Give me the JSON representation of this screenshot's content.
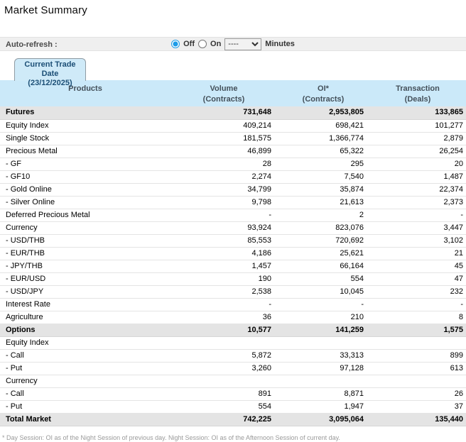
{
  "page": {
    "title": "Market Summary"
  },
  "auto_refresh": {
    "label": "Auto-refresh :",
    "off_label": "Off",
    "on_label": "On",
    "selected": "off",
    "interval_value": "----",
    "minutes_label": "Minutes"
  },
  "tab": {
    "line1": "Current Trade Date",
    "line2": "(23/12/2025)"
  },
  "table": {
    "headers": {
      "products": "Products",
      "volume_line1": "Volume",
      "volume_line2": "(Contracts)",
      "oi_line1": "OI*",
      "oi_line2": "(Contracts)",
      "transaction_line1": "Transaction",
      "transaction_line2": "(Deals)"
    },
    "rows": [
      {
        "label": "Futures",
        "volume": "731,648",
        "oi": "2,953,805",
        "transaction": "133,865",
        "type": "section"
      },
      {
        "label": "Equity Index",
        "volume": "409,214",
        "oi": "698,421",
        "transaction": "101,277",
        "type": "group"
      },
      {
        "label": "Single Stock",
        "volume": "181,575",
        "oi": "1,366,774",
        "transaction": "2,879",
        "type": "group"
      },
      {
        "label": "Precious Metal",
        "volume": "46,899",
        "oi": "65,322",
        "transaction": "26,254",
        "type": "group"
      },
      {
        "label": "- GF",
        "volume": "28",
        "oi": "295",
        "transaction": "20",
        "type": "sub"
      },
      {
        "label": "- GF10",
        "volume": "2,274",
        "oi": "7,540",
        "transaction": "1,487",
        "type": "sub"
      },
      {
        "label": "- Gold Online",
        "volume": "34,799",
        "oi": "35,874",
        "transaction": "22,374",
        "type": "sub"
      },
      {
        "label": "- Silver Online",
        "volume": "9,798",
        "oi": "21,613",
        "transaction": "2,373",
        "type": "sub"
      },
      {
        "label": "Deferred Precious Metal",
        "volume": "-",
        "oi": "2",
        "transaction": "-",
        "type": "group"
      },
      {
        "label": "Currency",
        "volume": "93,924",
        "oi": "823,076",
        "transaction": "3,447",
        "type": "group"
      },
      {
        "label": "- USD/THB",
        "volume": "85,553",
        "oi": "720,692",
        "transaction": "3,102",
        "type": "sub"
      },
      {
        "label": "- EUR/THB",
        "volume": "4,186",
        "oi": "25,621",
        "transaction": "21",
        "type": "sub"
      },
      {
        "label": "- JPY/THB",
        "volume": "1,457",
        "oi": "66,164",
        "transaction": "45",
        "type": "sub"
      },
      {
        "label": "- EUR/USD",
        "volume": "190",
        "oi": "554",
        "transaction": "47",
        "type": "sub"
      },
      {
        "label": "- USD/JPY",
        "volume": "2,538",
        "oi": "10,045",
        "transaction": "232",
        "type": "sub"
      },
      {
        "label": "Interest Rate",
        "volume": "-",
        "oi": "-",
        "transaction": "-",
        "type": "group"
      },
      {
        "label": "Agriculture",
        "volume": "36",
        "oi": "210",
        "transaction": "8",
        "type": "group"
      },
      {
        "label": "Options",
        "volume": "10,577",
        "oi": "141,259",
        "transaction": "1,575",
        "type": "section"
      },
      {
        "label": "Equity Index",
        "volume": "",
        "oi": "",
        "transaction": "",
        "type": "group"
      },
      {
        "label": "- Call",
        "volume": "5,872",
        "oi": "33,313",
        "transaction": "899",
        "type": "sub"
      },
      {
        "label": "- Put",
        "volume": "3,260",
        "oi": "97,128",
        "transaction": "613",
        "type": "sub"
      },
      {
        "label": "Currency",
        "volume": "",
        "oi": "",
        "transaction": "",
        "type": "group"
      },
      {
        "label": "- Call",
        "volume": "891",
        "oi": "8,871",
        "transaction": "26",
        "type": "sub"
      },
      {
        "label": "- Put",
        "volume": "554",
        "oi": "1,947",
        "transaction": "37",
        "type": "sub"
      },
      {
        "label": "Total Market",
        "volume": "742,225",
        "oi": "3,095,064",
        "transaction": "135,440",
        "type": "total"
      }
    ]
  },
  "footnote": "* Day Session: OI as of the Night Session of previous day. Night Session: OI as of the Afternoon Session of current day.",
  "colors": {
    "header_bg": "#cbe9f9",
    "tab_bg": "#cfeaf8",
    "tab_text": "#1c4f76",
    "section_bg": "#e4e4e4",
    "bar_bg": "#efefef",
    "accent": "#1c9ce8"
  }
}
